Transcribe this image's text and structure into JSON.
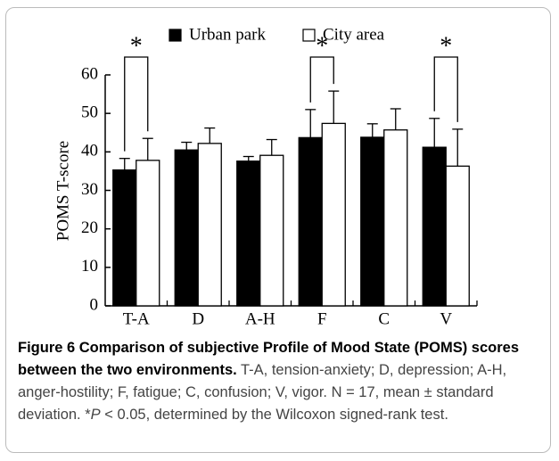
{
  "chart_data": {
    "type": "bar",
    "categories": [
      "T-A",
      "D",
      "A-H",
      "F",
      "C",
      "V"
    ],
    "series": [
      {
        "name": "Urban park",
        "color": "#000000",
        "values": [
          35.3,
          40.5,
          37.6,
          43.7,
          43.8,
          41.2
        ],
        "errors": [
          3.0,
          2.0,
          1.2,
          7.3,
          3.5,
          7.5
        ]
      },
      {
        "name": "City area",
        "color": "#ffffff",
        "values": [
          37.8,
          42.2,
          39.1,
          47.4,
          45.7,
          36.3
        ],
        "errors": [
          5.7,
          4.0,
          4.1,
          8.4,
          5.5,
          9.6
        ]
      }
    ],
    "y_label": "POMS T-score",
    "ylim": [
      0,
      60
    ],
    "yticks": [
      0,
      10,
      20,
      30,
      40,
      50,
      60
    ],
    "legend": "top",
    "annotations": [
      {
        "text": "*",
        "category": "T-A"
      },
      {
        "text": "*",
        "category": "F"
      },
      {
        "text": "*",
        "category": "V"
      }
    ]
  },
  "caption": {
    "title": "Figure 6 Comparison of subjective Profile of Mood State (POMS) scores between the two environments.",
    "text": "T-A, tension-anxiety; D, depression; A-H, anger-hostility; F, fatigue; C, confusion; V, vigor. N = 17, mean ± standard deviation. *",
    "italic": "P",
    "text_end": " < 0.05, determined by the Wilcoxon signed-rank test."
  }
}
